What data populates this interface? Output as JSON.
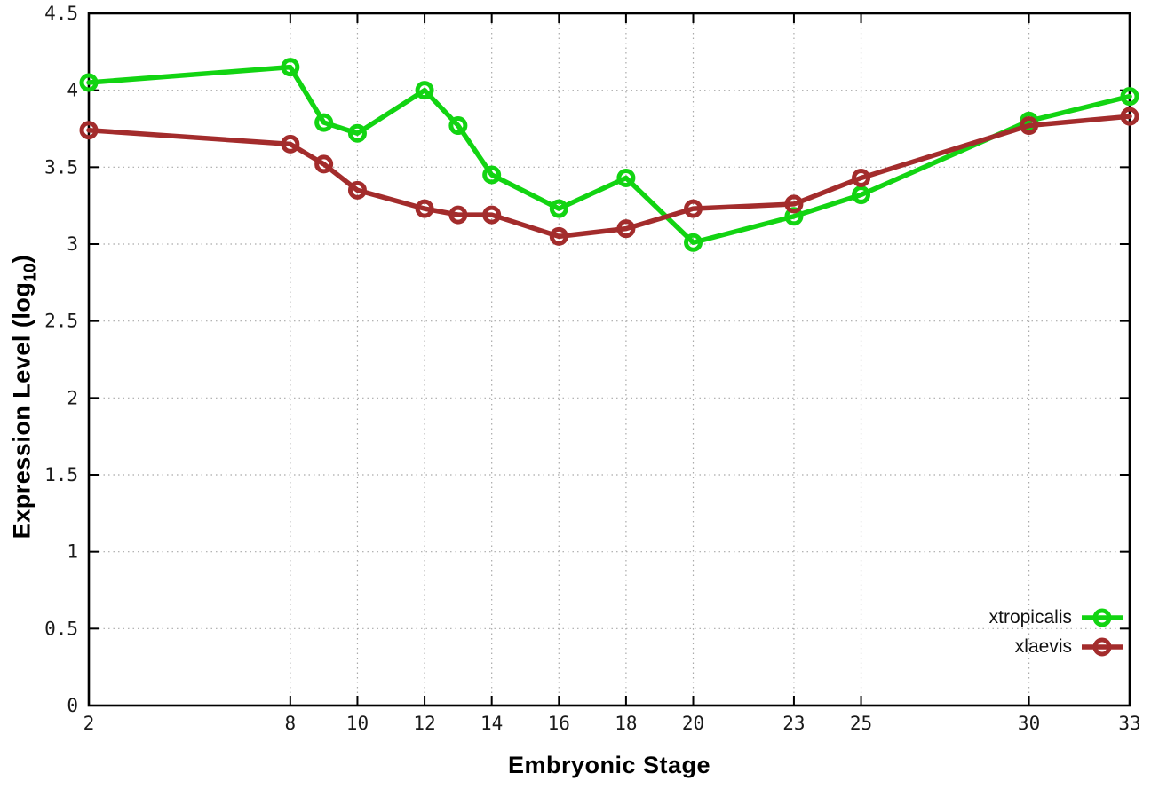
{
  "chart_data": {
    "type": "line",
    "title": "",
    "xlabel": "Embryonic Stage",
    "ylabel": "Expression Level (log10)",
    "ylabel_prefix": "Expression Level (log",
    "ylabel_sub": "10",
    "ylabel_suffix": ")",
    "x": [
      2,
      8,
      9,
      10,
      12,
      13,
      14,
      16,
      18,
      20,
      23,
      25,
      30,
      33
    ],
    "xticks": [
      2,
      8,
      10,
      12,
      14,
      16,
      18,
      20,
      23,
      25,
      30,
      33
    ],
    "yticks": [
      0,
      0.5,
      1,
      1.5,
      2,
      2.5,
      3,
      3.5,
      4,
      4.5
    ],
    "xlim": [
      2,
      33
    ],
    "ylim": [
      0,
      4.5
    ],
    "grid": true,
    "legend_position": "bottom-right-inside",
    "series": [
      {
        "name": "xtropicalis",
        "color": "#12d412",
        "values": [
          4.05,
          4.15,
          3.79,
          3.72,
          4.0,
          3.77,
          3.45,
          3.23,
          3.43,
          3.01,
          3.18,
          3.32,
          3.8,
          3.96
        ]
      },
      {
        "name": "xlaevis",
        "color": "#a32c2c",
        "values": [
          3.74,
          3.65,
          3.52,
          3.35,
          3.23,
          3.19,
          3.19,
          3.05,
          3.1,
          3.23,
          3.26,
          3.43,
          3.77,
          3.83
        ]
      }
    ],
    "grid_color": "#aaaaaa",
    "axis_color": "#000000",
    "tick_label_color": "#1a1a1a"
  }
}
